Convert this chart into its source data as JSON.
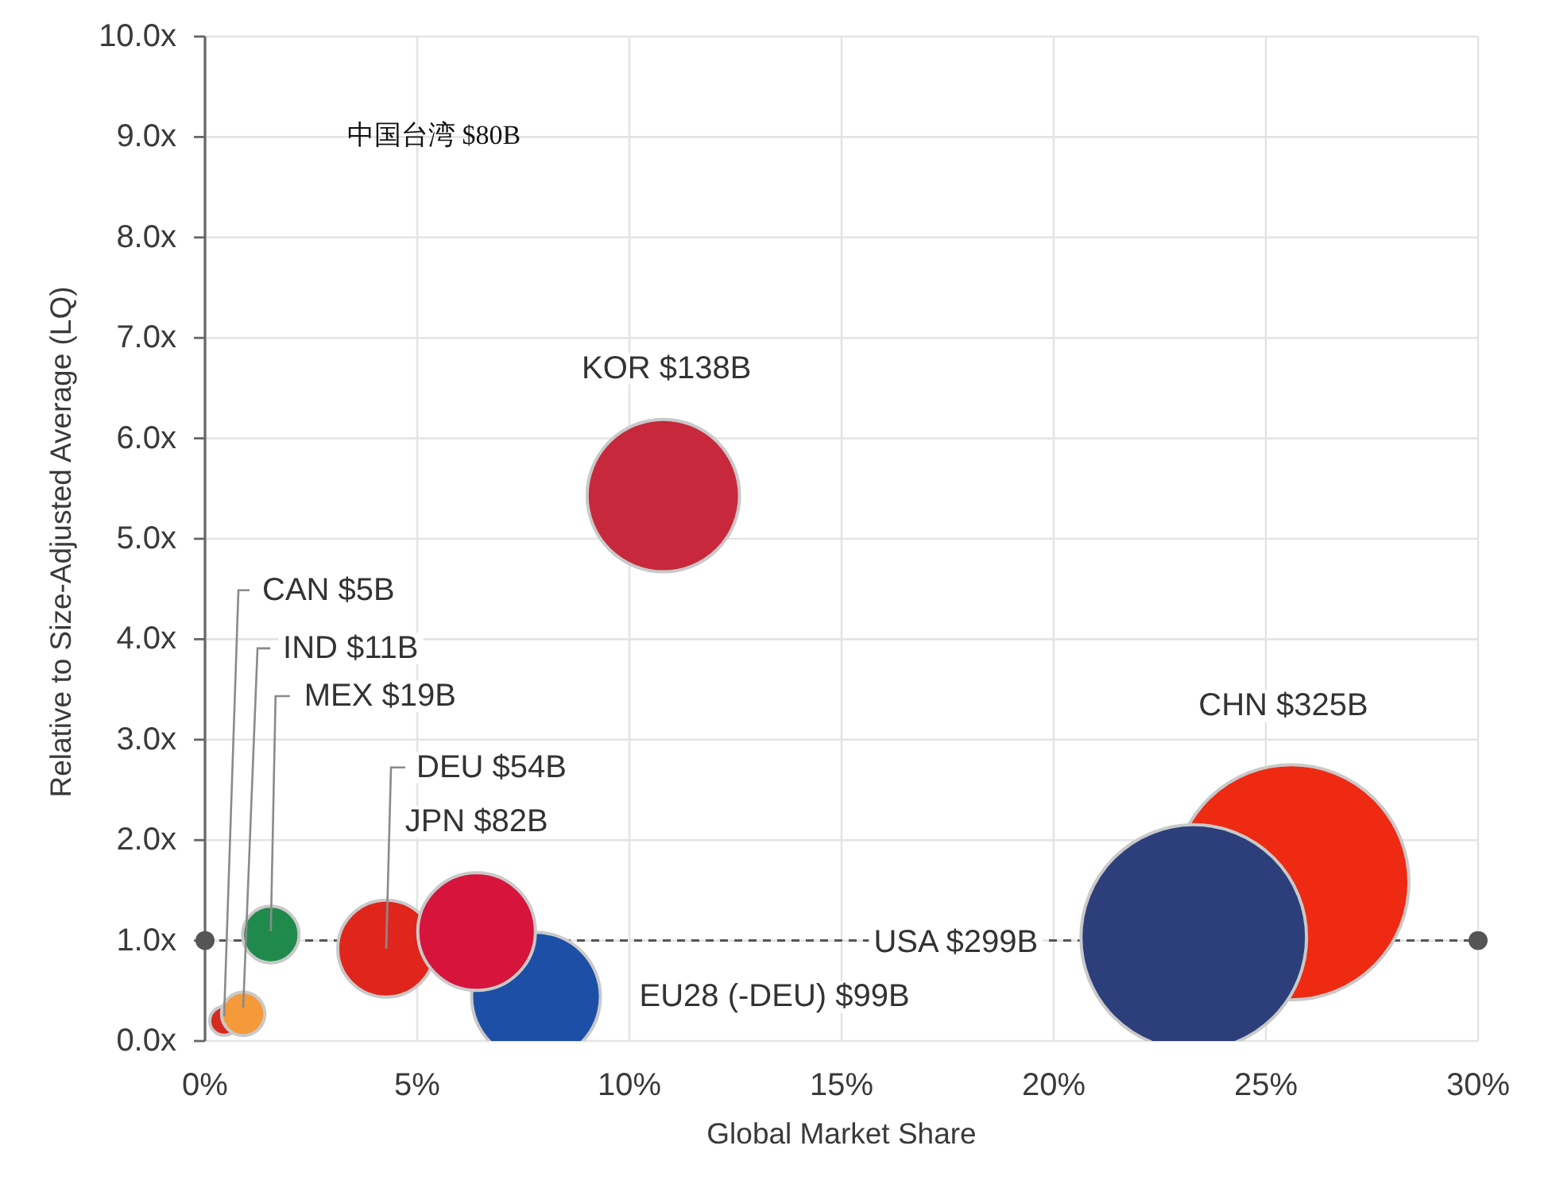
{
  "chart_data": {
    "type": "bubble",
    "xlabel": "Global Market Share",
    "ylabel": "Relative to Size-Adjusted Average (LQ)",
    "xlim": [
      0,
      30
    ],
    "ylim": [
      0,
      10
    ],
    "xticks": [
      {
        "value": 0,
        "label": "0%"
      },
      {
        "value": 5,
        "label": "5%"
      },
      {
        "value": 10,
        "label": "10%"
      },
      {
        "value": 15,
        "label": "15%"
      },
      {
        "value": 20,
        "label": "20%"
      },
      {
        "value": 25,
        "label": "25%"
      },
      {
        "value": 30,
        "label": "30%"
      }
    ],
    "yticks": [
      {
        "value": 0,
        "label": "0.0x"
      },
      {
        "value": 1,
        "label": "1.0x"
      },
      {
        "value": 2,
        "label": "2.0x"
      },
      {
        "value": 3,
        "label": "3.0x"
      },
      {
        "value": 4,
        "label": "4.0x"
      },
      {
        "value": 5,
        "label": "5.0x"
      },
      {
        "value": 6,
        "label": "6.0x"
      },
      {
        "value": 7,
        "label": "7.0x"
      },
      {
        "value": 8,
        "label": "8.0x"
      },
      {
        "value": 9,
        "label": "9.0x"
      },
      {
        "value": 10,
        "label": "10.0x"
      }
    ],
    "grid": true,
    "series": [
      {
        "name": "CAN $5B",
        "color": "#d52b1e",
        "x": [
          0.45
        ],
        "values": [
          0.2
        ],
        "sizes": [
          0.015
        ]
      },
      {
        "name": "IND $11B",
        "color": "#f49a3a",
        "x": [
          0.9
        ],
        "values": [
          0.27
        ],
        "sizes": [
          0.034
        ]
      },
      {
        "name": "MEX $19B",
        "color": "#1f8a4c",
        "x": [
          1.55
        ],
        "values": [
          1.06
        ],
        "sizes": [
          0.058
        ]
      },
      {
        "name": "DEU $54B",
        "color": "#e0261c",
        "x": [
          4.27
        ],
        "values": [
          0.92
        ],
        "sizes": [
          0.17
        ]
      },
      {
        "name": "EU28 (-DEU) $99B",
        "color": "#1d4fa6",
        "x": [
          7.8
        ],
        "values": [
          0.44
        ],
        "sizes": [
          0.3
        ]
      },
      {
        "name": "JPN $82B",
        "color": "#d6143c",
        "x": [
          6.4
        ],
        "values": [
          1.09
        ],
        "sizes": [
          0.25
        ]
      },
      {
        "name": "KOR $138B",
        "color": "#c8283c",
        "x": [
          10.8
        ],
        "values": [
          5.43
        ],
        "sizes": [
          0.42
        ]
      },
      {
        "name": "CHN $325B",
        "color": "#ee2a12",
        "x": [
          25.6
        ],
        "values": [
          1.58
        ],
        "sizes": [
          1
        ]
      },
      {
        "name": "USA $299B",
        "color": "#2c3f7a",
        "x": [
          23.3
        ],
        "values": [
          1.03
        ],
        "sizes": [
          0.92
        ]
      }
    ],
    "ref_lines": [
      {
        "axis": "y",
        "value": 1,
        "line_style": "dashed",
        "color": "#555555"
      }
    ],
    "annotations": [
      "中国台湾 $80B"
    ]
  }
}
